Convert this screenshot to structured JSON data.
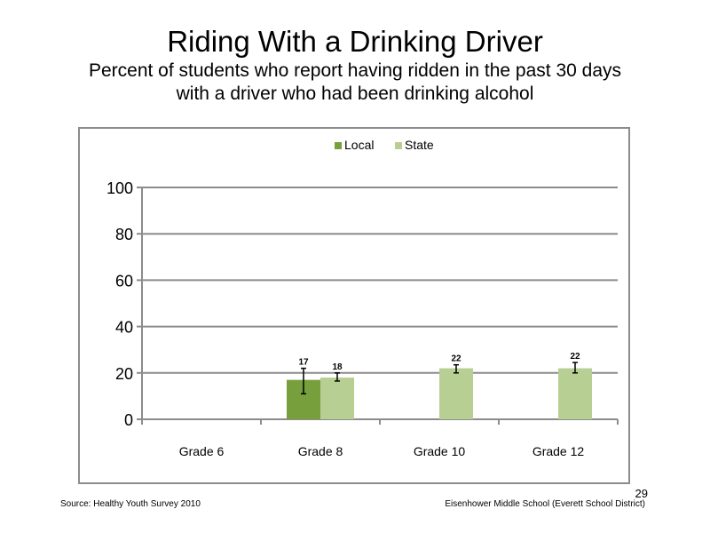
{
  "slide": {
    "title": "Riding With a Drinking Driver",
    "subtitle_line1": "Percent of students who report having ridden in the past 30 days",
    "subtitle_line2": "with a driver who had been drinking alcohol",
    "source": "Source: Healthy Youth Survey 2010",
    "school": "Eisenhower Middle  School (Everett School District)",
    "page_number": "29"
  },
  "chart_data": {
    "type": "bar",
    "categories": [
      "Grade 6",
      "Grade 8",
      "Grade 10",
      "Grade 12"
    ],
    "series": [
      {
        "name": "Local",
        "color": "#77a03c",
        "values": [
          null,
          17,
          null,
          null
        ],
        "labels": [
          "",
          "17",
          "",
          ""
        ],
        "error": [
          null,
          [
            11,
            22
          ],
          null,
          null
        ]
      },
      {
        "name": "State",
        "color": "#b8cf94",
        "values": [
          null,
          18,
          22,
          22
        ],
        "labels": [
          "",
          "18",
          "22",
          "22"
        ],
        "error": [
          null,
          [
            16.5,
            20
          ],
          [
            20,
            23.5
          ],
          [
            20,
            24.5
          ]
        ]
      }
    ],
    "ylim": [
      0,
      100
    ],
    "yticks": [
      0,
      20,
      40,
      60,
      80,
      100
    ],
    "grid": true,
    "legend": "top-center"
  }
}
